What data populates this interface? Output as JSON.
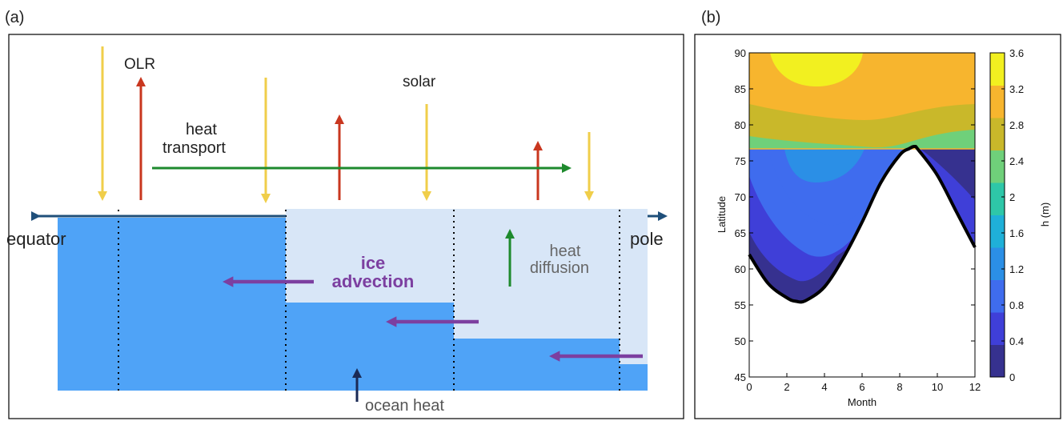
{
  "panel_a": {
    "label": "(a)",
    "olr": "OLR",
    "solar": "solar",
    "heat_transport_line1": "heat",
    "heat_transport_line2": "transport",
    "equator": "equator",
    "pole": "pole",
    "ice_advection_line1": "ice",
    "ice_advection_line2": "advection",
    "heat_diffusion_line1": "heat",
    "heat_diffusion_line2": "diffusion",
    "ocean_heat": "ocean heat",
    "colors": {
      "ocean": "#4fa3f7",
      "ice": "#d8e6f7",
      "solar_arrow": "#f0ce4a",
      "olr_arrow": "#c9371f",
      "transport_arrow": "#1e8a2d",
      "advection_arrow": "#7c3fa0",
      "axis_arrow": "#1f4f7a"
    }
  },
  "panel_b": {
    "label": "(b)",
    "chart_data": {
      "type": "heatmap",
      "xlabel": "Month",
      "ylabel": "Latitude",
      "colorbar_label": "h (m)",
      "xlim": [
        0,
        12
      ],
      "ylim": [
        45,
        90
      ],
      "x_ticks": [
        "0",
        "2",
        "4",
        "6",
        "8",
        "10",
        "12"
      ],
      "y_ticks": [
        "45",
        "50",
        "55",
        "60",
        "65",
        "70",
        "75",
        "80",
        "85",
        "90"
      ],
      "colorbar_ticks": [
        "0",
        "0.4",
        "0.8",
        "1.2",
        "1.6",
        "2",
        "2.4",
        "2.8",
        "3.2",
        "3.6"
      ],
      "colorbar_colors": [
        "#36318f",
        "#3f3fd8",
        "#3f6cee",
        "#2b8fe6",
        "#1fb0d8",
        "#2ec7a8",
        "#6fd07a",
        "#c9b82a",
        "#f7b52e",
        "#f2f020"
      ],
      "ice_edge": {
        "month": [
          0,
          1,
          2,
          2.5,
          3,
          4,
          5,
          6,
          7,
          8,
          8.5,
          8.8,
          9,
          10,
          11,
          12
        ],
        "latitude": [
          62,
          58,
          56,
          55.5,
          55.6,
          57.5,
          61.5,
          66.5,
          72,
          75.8,
          76.7,
          77,
          76.5,
          73,
          68,
          63
        ]
      }
    }
  }
}
